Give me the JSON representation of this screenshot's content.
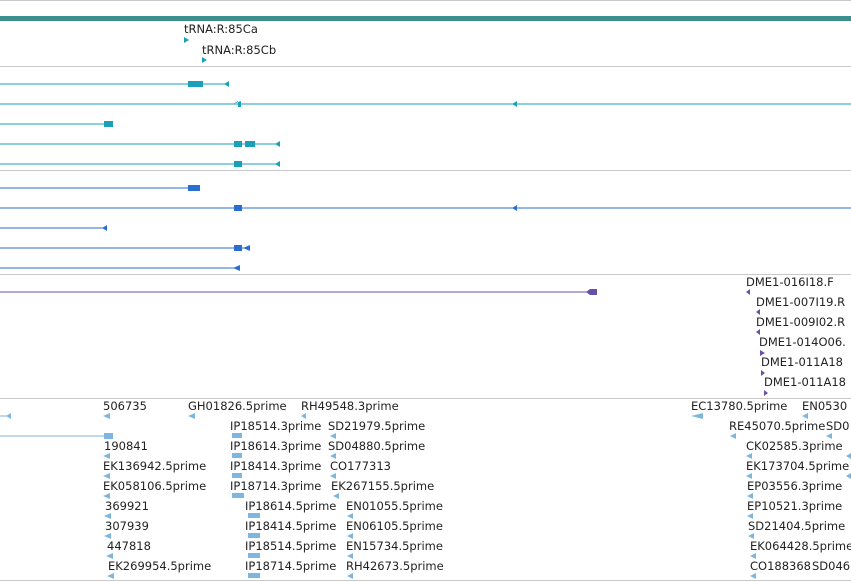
{
  "tracks": {
    "trna": {
      "labels": [
        "tRNA:R:85Ca",
        "tRNA:R:85Cb"
      ]
    },
    "probes": {
      "labels": [
        "DME1-016I18.F",
        "DME1-007I19.R",
        "DME1-009I02.R",
        "DME1-014O06.",
        "DME1-011A18",
        "DME1-011A18"
      ]
    },
    "ests": {
      "col1": [
        "506735",
        "190841",
        "EK136942.5prime",
        "EK058106.5prime",
        "369921",
        "307939",
        "447818",
        "EK269954.5prime"
      ],
      "col2": [
        "GH01826.5prime",
        "IP18514.3prime",
        "IP18614.3prime",
        "IP18414.3prime",
        "IP18714.3prime",
        "IP18614.5prime",
        "IP18414.5prime",
        "IP18514.5prime",
        "IP18714.5prime"
      ],
      "col3": [
        "RH49548.3prime",
        "SD21979.5prime",
        "SD04880.5prime",
        "CO177313",
        "EK267155.5prime",
        "EN01055.5prime",
        "EN06105.5prime",
        "EN15734.5prime",
        "RH42673.5prime"
      ],
      "col4": [
        "EC13780.5prime",
        "RE45070.5prime",
        "CK02585.3prime",
        "EK173704.5prime",
        "EP03556.3prime",
        "EP10521.3prime",
        "SD21404.5prime",
        "EK064428.5prime",
        "CO188368"
      ],
      "col5": [
        "EN0530",
        "SD0",
        "",
        "",
        "",
        "",
        "",
        "",
        "SD046"
      ]
    }
  },
  "colors": {
    "ruler": "#3d8f8c",
    "teal": "#1aa0b8",
    "blue": "#2a6fd0",
    "purple": "#6a4fa8",
    "est": "#7fb6df"
  }
}
